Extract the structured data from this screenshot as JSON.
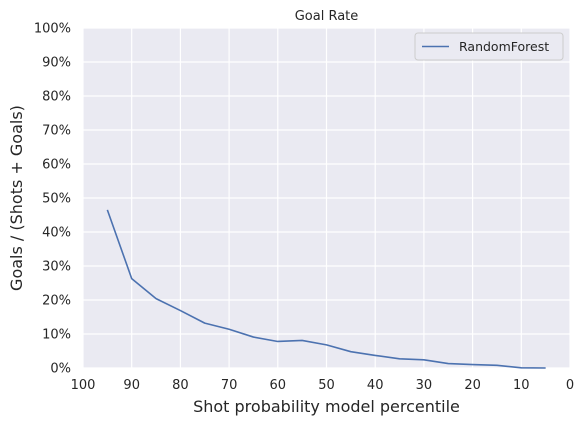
{
  "chart_data": {
    "type": "line",
    "title": "Goal Rate",
    "xlabel": "Shot probability model percentile",
    "ylabel": "Goals / (Shots + Goals)",
    "xlim": [
      100,
      0
    ],
    "ylim": [
      0,
      100
    ],
    "x_reversed": true,
    "x_ticks": [
      100,
      90,
      80,
      70,
      60,
      50,
      40,
      30,
      20,
      10,
      0
    ],
    "x_tick_labels": [
      "100",
      "90",
      "80",
      "70",
      "60",
      "50",
      "40",
      "30",
      "20",
      "10",
      "0"
    ],
    "y_ticks": [
      0,
      10,
      20,
      30,
      40,
      50,
      60,
      70,
      80,
      90,
      100
    ],
    "y_tick_labels": [
      "0%",
      "10%",
      "20%",
      "30%",
      "40%",
      "50%",
      "60%",
      "70%",
      "80%",
      "90%",
      "100%"
    ],
    "grid": true,
    "background": "#eaeaf2",
    "legend_position": "top-right",
    "series": [
      {
        "name": "RandomForest",
        "color": "#4c72b0",
        "x": [
          95,
          90,
          85,
          80,
          75,
          70,
          65,
          60,
          55,
          50,
          45,
          40,
          35,
          30,
          25,
          20,
          15,
          10,
          5
        ],
        "y": [
          46.5,
          26.3,
          20.4,
          16.9,
          13.2,
          11.4,
          9.1,
          7.8,
          8.1,
          6.8,
          4.8,
          3.7,
          2.7,
          2.4,
          1.3,
          1.0,
          0.8,
          0.05,
          0.0
        ]
      }
    ]
  }
}
